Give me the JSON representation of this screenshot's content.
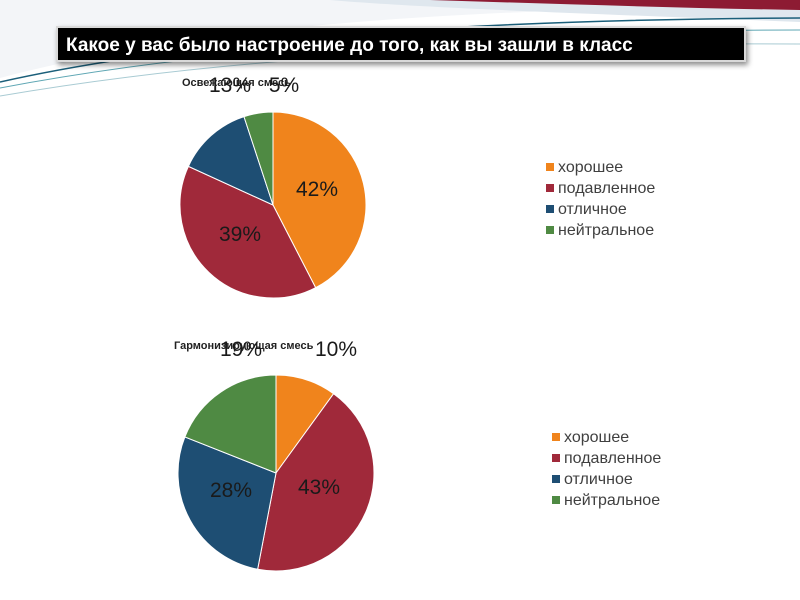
{
  "slide": {
    "title": "Какое у вас было настроение до того, как вы зашли в класс"
  },
  "colors": {
    "orange": "#f0841c",
    "red": "#a0293a",
    "blue": "#1e4e73",
    "green": "#4f8a43"
  },
  "chart_data": [
    {
      "type": "pie",
      "title": "Освежающая смесь",
      "categories": [
        "хорошее",
        "подавленное",
        "отличное",
        "нейтральное"
      ],
      "values": [
        42,
        39,
        13,
        5
      ],
      "labels": [
        "42%",
        "39%",
        "13%",
        "5%"
      ],
      "legend": "right"
    },
    {
      "type": "pie",
      "title": "Гармонизирующая смесь",
      "categories": [
        "хорошее",
        "подавленное",
        "отличное",
        "нейтральное"
      ],
      "values": [
        10,
        43,
        28,
        19
      ],
      "labels": [
        "10%",
        "43%",
        "28%",
        "19%"
      ],
      "legend": "right"
    }
  ]
}
